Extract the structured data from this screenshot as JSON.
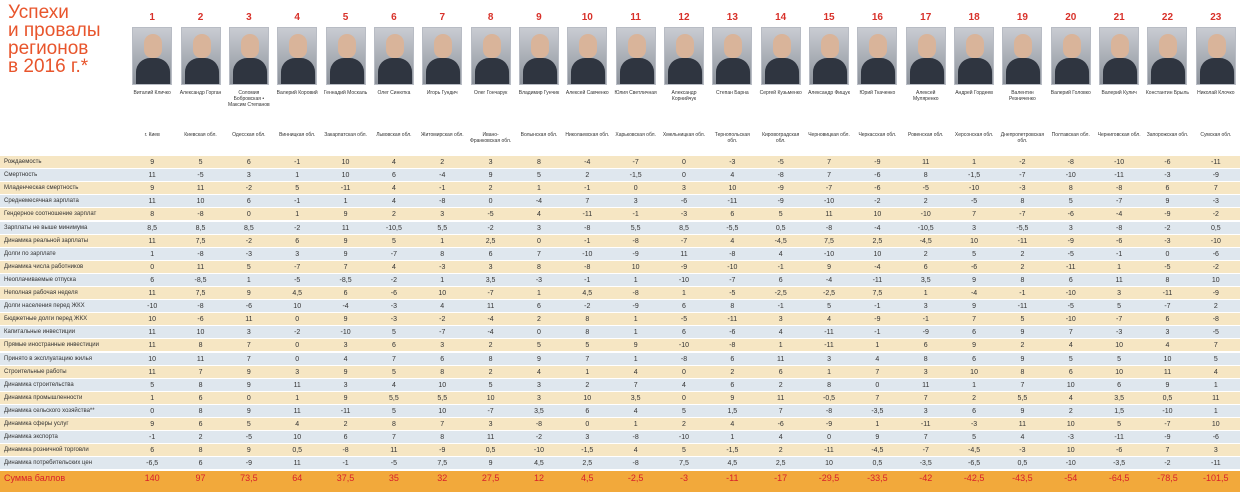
{
  "title": [
    "Успехи",
    "и провалы",
    "регионов",
    "в 2016 г.*"
  ],
  "columns": [
    {
      "number": 1,
      "name": "Виталий Кличко",
      "region": "г. Киев"
    },
    {
      "number": 2,
      "name": "Александр Горган",
      "region": "Киевская обл."
    },
    {
      "number": 3,
      "name": "Соломия Бобровская • Максим Степанов",
      "region": "Одесская обл."
    },
    {
      "number": 4,
      "name": "Валерий Коровий",
      "region": "Винницкая обл."
    },
    {
      "number": 5,
      "name": "Геннадий Москаль",
      "region": "Закарпатская обл."
    },
    {
      "number": 6,
      "name": "Олег Синютка",
      "region": "Львовская обл."
    },
    {
      "number": 7,
      "name": "Игорь Гундич",
      "region": "Житомирская обл."
    },
    {
      "number": 8,
      "name": "Олег Гончарук",
      "region": "Ивано-Франковская обл."
    },
    {
      "number": 9,
      "name": "Владимир Гунчик",
      "region": "Волынская обл."
    },
    {
      "number": 10,
      "name": "Алексей Савченко",
      "region": "Николаевская обл."
    },
    {
      "number": 11,
      "name": "Юлия Светличная",
      "region": "Харьковская обл."
    },
    {
      "number": 12,
      "name": "Александр Корнийчук",
      "region": "Хмельницкая обл."
    },
    {
      "number": 13,
      "name": "Степан Барна",
      "region": "Тернопольская обл."
    },
    {
      "number": 14,
      "name": "Сергей Кузьменко",
      "region": "Кировоградская обл."
    },
    {
      "number": 15,
      "name": "Александр Фищук",
      "region": "Черновицкая обл."
    },
    {
      "number": 16,
      "name": "Юрий Ткаченко",
      "region": "Черкасская обл."
    },
    {
      "number": 17,
      "name": "Алексей Муляренко",
      "region": "Ровенская обл."
    },
    {
      "number": 18,
      "name": "Андрей Гордеев",
      "region": "Херсонская обл."
    },
    {
      "number": 19,
      "name": "Валентин Резниченко",
      "region": "Днепропетровская обл."
    },
    {
      "number": 20,
      "name": "Валерий Головко",
      "region": "Полтавская обл."
    },
    {
      "number": 21,
      "name": "Валерий Кулич",
      "region": "Черниговская обл."
    },
    {
      "number": 22,
      "name": "Константин Брыль",
      "region": "Запорожская обл."
    },
    {
      "number": 23,
      "name": "Николай Клочко",
      "region": "Сумская обл."
    }
  ],
  "rows": [
    {
      "label": "Рождаемость",
      "values": [
        "9",
        "5",
        "6",
        "-1",
        "10",
        "4",
        "2",
        "3",
        "8",
        "-4",
        "-7",
        "0",
        "-3",
        "-5",
        "7",
        "-9",
        "11",
        "1",
        "-2",
        "-8",
        "-10",
        "-6",
        "-11"
      ]
    },
    {
      "label": "Смертность",
      "values": [
        "11",
        "-5",
        "3",
        "1",
        "10",
        "6",
        "-4",
        "9",
        "5",
        "2",
        "-1,5",
        "0",
        "4",
        "-8",
        "7",
        "-6",
        "8",
        "-1,5",
        "-7",
        "-10",
        "-11",
        "-3",
        "-9"
      ]
    },
    {
      "label": "Младенческая смертность",
      "values": [
        "9",
        "11",
        "-2",
        "5",
        "-11",
        "4",
        "-1",
        "2",
        "1",
        "-1",
        "0",
        "3",
        "10",
        "-9",
        "-7",
        "-6",
        "-5",
        "-10",
        "-3",
        "8",
        "-8",
        "6",
        "7"
      ]
    },
    {
      "label": "Среднемесячная зарплата",
      "values": [
        "11",
        "10",
        "6",
        "-1",
        "1",
        "4",
        "-8",
        "0",
        "-4",
        "7",
        "3",
        "-6",
        "-11",
        "-9",
        "-10",
        "-2",
        "2",
        "-5",
        "8",
        "5",
        "-7",
        "9",
        "-3"
      ]
    },
    {
      "label": "Гендерное соотношение зарплат",
      "values": [
        "8",
        "-8",
        "0",
        "1",
        "9",
        "2",
        "3",
        "-5",
        "4",
        "-11",
        "-1",
        "-3",
        "6",
        "5",
        "11",
        "10",
        "-10",
        "7",
        "-7",
        "-6",
        "-4",
        "-9",
        "-2"
      ]
    },
    {
      "label": "Зарплаты не выше минимума",
      "values": [
        "8,5",
        "8,5",
        "8,5",
        "-2",
        "11",
        "-10,5",
        "5,5",
        "-2",
        "3",
        "-8",
        "5,5",
        "8,5",
        "-5,5",
        "0,5",
        "-8",
        "-4",
        "-10,5",
        "3",
        "-5,5",
        "3",
        "-8",
        "-2",
        "0,5"
      ]
    },
    {
      "label": "Динамика реальной зарплаты",
      "values": [
        "11",
        "7,5",
        "-2",
        "6",
        "9",
        "5",
        "1",
        "2,5",
        "0",
        "-1",
        "-8",
        "-7",
        "4",
        "-4,5",
        "7,5",
        "2,5",
        "-4,5",
        "10",
        "-11",
        "-9",
        "-6",
        "-3",
        "-10"
      ]
    },
    {
      "label": "Долги по зарплате",
      "values": [
        "1",
        "-8",
        "-3",
        "3",
        "9",
        "-7",
        "8",
        "6",
        "7",
        "-10",
        "-9",
        "11",
        "-8",
        "4",
        "-10",
        "10",
        "2",
        "5",
        "2",
        "-5",
        "-1",
        "0",
        "-6"
      ]
    },
    {
      "label": "Динамика числа работников",
      "values": [
        "0",
        "11",
        "5",
        "-7",
        "7",
        "4",
        "-3",
        "3",
        "8",
        "-8",
        "10",
        "-9",
        "-10",
        "-1",
        "9",
        "-4",
        "6",
        "-6",
        "2",
        "-11",
        "1",
        "-5",
        "-2"
      ]
    },
    {
      "label": "Неоплачиваемые отпуска",
      "values": [
        "6",
        "-8,5",
        "1",
        "-5",
        "-8,5",
        "-2",
        "1",
        "3,5",
        "-3",
        "-1",
        "1",
        "-10",
        "-7",
        "6",
        "-4",
        "-11",
        "3,5",
        "9",
        "8",
        "6",
        "11",
        "8",
        "10"
      ]
    },
    {
      "label": "Неполная рабочая неделя",
      "values": [
        "11",
        "7,5",
        "9",
        "4,5",
        "6",
        "-6",
        "10",
        "-7",
        "1",
        "4,5",
        "-8",
        "1",
        "-5",
        "-2,5",
        "-2,5",
        "7,5",
        "1",
        "-4",
        "-1",
        "-10",
        "3",
        "-11",
        "-9"
      ]
    },
    {
      "label": "Долги населения перед ЖКХ",
      "values": [
        "-10",
        "-8",
        "-6",
        "10",
        "-4",
        "-3",
        "4",
        "11",
        "6",
        "-2",
        "-9",
        "6",
        "8",
        "-1",
        "5",
        "-1",
        "3",
        "9",
        "-11",
        "-5",
        "5",
        "-7",
        "2"
      ]
    },
    {
      "label": "Бюджетные долги перед ЖКХ",
      "values": [
        "10",
        "-6",
        "11",
        "0",
        "9",
        "-3",
        "-2",
        "-4",
        "2",
        "8",
        "1",
        "-5",
        "-11",
        "3",
        "4",
        "-9",
        "-1",
        "7",
        "5",
        "-10",
        "-7",
        "6",
        "-8"
      ]
    },
    {
      "label": "Капитальные инвестиции",
      "values": [
        "11",
        "10",
        "3",
        "-2",
        "-10",
        "5",
        "-7",
        "-4",
        "0",
        "8",
        "1",
        "6",
        "-6",
        "4",
        "-11",
        "-1",
        "-9",
        "6",
        "9",
        "7",
        "-3",
        "3",
        "-5"
      ]
    },
    {
      "label": "Прямые иностранные инвестиции",
      "values": [
        "11",
        "8",
        "7",
        "0",
        "3",
        "6",
        "3",
        "2",
        "5",
        "5",
        "9",
        "-10",
        "-8",
        "1",
        "-11",
        "1",
        "6",
        "9",
        "2",
        "4",
        "10",
        "4",
        "7"
      ]
    },
    {
      "label": "Принято в эксплуатацию жилья",
      "values": [
        "10",
        "11",
        "7",
        "0",
        "4",
        "7",
        "6",
        "8",
        "9",
        "7",
        "1",
        "-8",
        "6",
        "11",
        "3",
        "4",
        "8",
        "6",
        "9",
        "5",
        "5",
        "10",
        "5"
      ]
    },
    {
      "label": "Строительные работы",
      "values": [
        "11",
        "7",
        "9",
        "3",
        "9",
        "5",
        "8",
        "2",
        "4",
        "1",
        "4",
        "0",
        "2",
        "6",
        "1",
        "7",
        "3",
        "10",
        "8",
        "6",
        "10",
        "11",
        "4"
      ]
    },
    {
      "label": "Динамика строительства",
      "values": [
        "5",
        "8",
        "9",
        "11",
        "3",
        "4",
        "10",
        "5",
        "3",
        "2",
        "7",
        "4",
        "6",
        "2",
        "8",
        "0",
        "11",
        "1",
        "7",
        "10",
        "6",
        "9",
        "1"
      ]
    },
    {
      "label": "Динамика промышленности",
      "values": [
        "1",
        "6",
        "0",
        "1",
        "9",
        "5,5",
        "5,5",
        "10",
        "3",
        "10",
        "3,5",
        "0",
        "9",
        "11",
        "-0,5",
        "7",
        "7",
        "2",
        "5,5",
        "4",
        "3,5",
        "0,5",
        "11"
      ]
    },
    {
      "label": "Динамика сельского хозяйства**",
      "values": [
        "0",
        "8",
        "9",
        "11",
        "-11",
        "5",
        "10",
        "-7",
        "3,5",
        "6",
        "4",
        "5",
        "1,5",
        "7",
        "-8",
        "-3,5",
        "3",
        "6",
        "9",
        "2",
        "1,5",
        "-10",
        "1"
      ]
    },
    {
      "label": "Динамика сферы услуг",
      "values": [
        "9",
        "6",
        "5",
        "4",
        "2",
        "8",
        "7",
        "3",
        "-8",
        "0",
        "1",
        "2",
        "4",
        "-6",
        "-9",
        "1",
        "-11",
        "-3",
        "11",
        "10",
        "5",
        "-7",
        "10"
      ]
    },
    {
      "label": "Динамика экспорта",
      "values": [
        "-1",
        "2",
        "-5",
        "10",
        "6",
        "7",
        "8",
        "11",
        "-2",
        "3",
        "-8",
        "-10",
        "1",
        "4",
        "0",
        "9",
        "7",
        "5",
        "4",
        "-3",
        "-11",
        "-9",
        "-6"
      ]
    },
    {
      "label": "Динамика розничной торговли",
      "values": [
        "6",
        "8",
        "9",
        "0,5",
        "-8",
        "11",
        "-9",
        "0,5",
        "-10",
        "-1,5",
        "4",
        "5",
        "-1,5",
        "2",
        "-11",
        "-4,5",
        "-7",
        "-4,5",
        "-3",
        "10",
        "-6",
        "7",
        "3"
      ]
    },
    {
      "label": "Динамика потребительских цен",
      "values": [
        "-6,5",
        "6",
        "-9",
        "11",
        "-1",
        "-5",
        "7,5",
        "9",
        "4,5",
        "2,5",
        "-8",
        "7,5",
        "4,5",
        "2,5",
        "10",
        "0,5",
        "-3,5",
        "-6,5",
        "0,5",
        "-10",
        "-3,5",
        "-2",
        "-11"
      ]
    }
  ],
  "total": {
    "label": "Сумма баллов",
    "values": [
      "140",
      "97",
      "73,5",
      "64",
      "37,5",
      "35",
      "32",
      "27,5",
      "12",
      "4,5",
      "-2,5",
      "-3",
      "-11",
      "-17",
      "-29,5",
      "-33,5",
      "-42",
      "-42,5",
      "-43,5",
      "-54",
      "-64,5",
      "-78,5",
      "-101,5"
    ]
  }
}
